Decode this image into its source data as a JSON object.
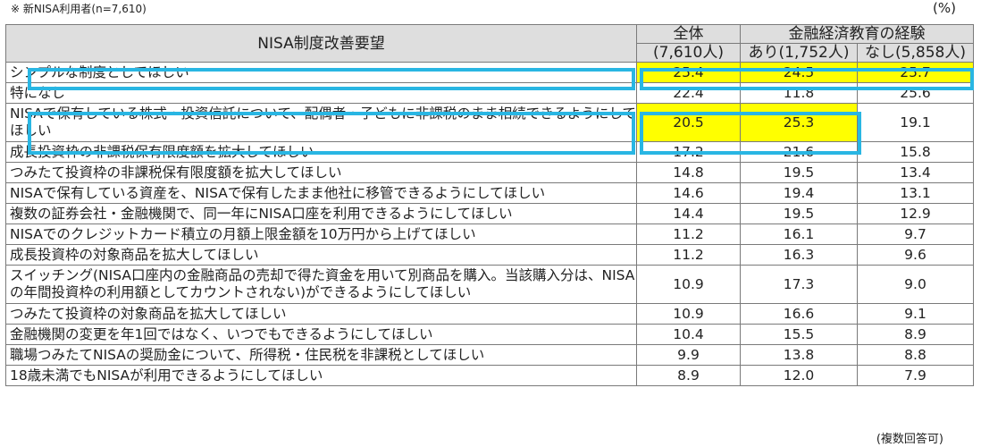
{
  "note": "※ 新NISA利用者(n=7,610)",
  "unit": "(%)",
  "footnote": "(複数回答可)",
  "colors": {
    "highlight": "#ffff00",
    "box": "#29b6e3",
    "header_bg": "#dedede"
  },
  "chart_data": {
    "type": "table",
    "header": {
      "item": "NISA制度改善要望",
      "total": "全体",
      "total_n": "(7,610人)",
      "group": "金融経済教育の経験",
      "yes": "あり(1,752人)",
      "no": "なし(5,858人)"
    },
    "rows": [
      {
        "label": "シンプルな制度としてほしい",
        "values": [
          "25.4",
          "24.5",
          "25.7"
        ],
        "highlight": [
          true,
          true,
          true
        ]
      },
      {
        "label": "特になし",
        "values": [
          "22.4",
          "11.8",
          "25.6"
        ],
        "highlight": [
          false,
          false,
          false
        ]
      },
      {
        "label": "NISAで保有している株式・投資信託について、配偶者・子どもに非課税のまま相続できるようにしてほしい",
        "values": [
          "20.5",
          "25.3",
          "19.1"
        ],
        "highlight": [
          true,
          true,
          false
        ]
      },
      {
        "label": "成長投資枠の非課税保有限度額を拡大してほしい",
        "values": [
          "17.2",
          "21.6",
          "15.8"
        ],
        "highlight": [
          false,
          false,
          false
        ]
      },
      {
        "label": "つみたて投資枠の非課税保有限度額を拡大してほしい",
        "values": [
          "14.8",
          "19.5",
          "13.4"
        ],
        "highlight": [
          false,
          false,
          false
        ]
      },
      {
        "label": "NISAで保有している資産を、NISAで保有したまま他社に移管できるようにしてほしい",
        "values": [
          "14.6",
          "19.4",
          "13.1"
        ],
        "highlight": [
          false,
          false,
          false
        ]
      },
      {
        "label": "複数の証券会社・金融機関で、同一年にNISA口座を利用できるようにしてほしい",
        "values": [
          "14.4",
          "19.5",
          "12.9"
        ],
        "highlight": [
          false,
          false,
          false
        ]
      },
      {
        "label": "NISAでのクレジットカード積立の月額上限金額を10万円から上げてほしい",
        "values": [
          "11.2",
          "16.1",
          "9.7"
        ],
        "highlight": [
          false,
          false,
          false
        ]
      },
      {
        "label": "成長投資枠の対象商品を拡大してほしい",
        "values": [
          "11.2",
          "16.3",
          "9.6"
        ],
        "highlight": [
          false,
          false,
          false
        ]
      },
      {
        "label": "スイッチング(NISA口座内の金融商品の売却で得た資金を用いて別商品を購入。当該購入分は、NISAの年間投資枠の利用額としてカウントされない)ができるようにしてほしい",
        "values": [
          "10.9",
          "17.3",
          "9.0"
        ],
        "highlight": [
          false,
          false,
          false
        ]
      },
      {
        "label": "つみたて投資枠の対象商品を拡大してほしい",
        "values": [
          "10.9",
          "16.6",
          "9.1"
        ],
        "highlight": [
          false,
          false,
          false
        ]
      },
      {
        "label": "金融機関の変更を年1回ではなく、いつでもできるようにしてほしい",
        "values": [
          "10.4",
          "15.5",
          "8.9"
        ],
        "highlight": [
          false,
          false,
          false
        ]
      },
      {
        "label": "職場つみたてNISAの奨励金について、所得税・住民税を非課税としてほしい",
        "values": [
          "9.9",
          "13.8",
          "8.8"
        ],
        "highlight": [
          false,
          false,
          false
        ]
      },
      {
        "label": "18歳未満でもNISAが利用できるようにしてほしい",
        "values": [
          "8.9",
          "12.0",
          "7.9"
        ],
        "highlight": [
          false,
          false,
          false
        ]
      }
    ]
  }
}
